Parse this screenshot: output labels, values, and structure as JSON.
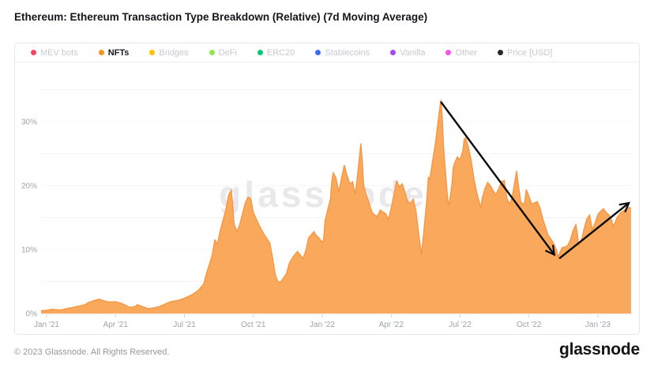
{
  "page": {
    "title": "Ethereum: Ethereum Transaction Type Breakdown (Relative) (7d Moving Average)",
    "watermark": "glassnode",
    "footer_copyright": "© 2023 Glassnode. All Rights Reserved.",
    "footer_logo": "glassnode"
  },
  "legend": {
    "position": "top",
    "items": [
      {
        "label": "MEV bots",
        "color": "#F9445F",
        "active": false
      },
      {
        "label": "NFTs",
        "color": "#F7931A",
        "active": true
      },
      {
        "label": "Bridges",
        "color": "#FDC300",
        "active": false
      },
      {
        "label": "DeFi",
        "color": "#8EE84C",
        "active": false
      },
      {
        "label": "ERC20",
        "color": "#00C875",
        "active": false
      },
      {
        "label": "Stablecoins",
        "color": "#3D6DF6",
        "active": false
      },
      {
        "label": "Vanilla",
        "color": "#A44AEC",
        "active": false
      },
      {
        "label": "Other",
        "color": "#F653E6",
        "active": false
      },
      {
        "label": "Price [USD]",
        "color": "#26262B",
        "active": false
      }
    ]
  },
  "chart_data": {
    "type": "area",
    "title": "Ethereum: Ethereum Transaction Type Breakdown (Relative) (7d Moving Average)",
    "xlabel": "",
    "ylabel": "",
    "unit": "%",
    "grid": "on",
    "legend_position": "top",
    "xlim": [
      2020.98,
      2023.13
    ],
    "ylim": [
      0,
      37
    ],
    "x_ticks": [
      {
        "t": 2021.0,
        "label": "Jan '21"
      },
      {
        "t": 2021.25,
        "label": "Apr '21"
      },
      {
        "t": 2021.5,
        "label": "Jul '21"
      },
      {
        "t": 2021.75,
        "label": "Oct '21"
      },
      {
        "t": 2022.0,
        "label": "Jan '22"
      },
      {
        "t": 2022.25,
        "label": "Apr '22"
      },
      {
        "t": 2022.5,
        "label": "Jul '22"
      },
      {
        "t": 2022.75,
        "label": "Oct '22"
      },
      {
        "t": 2023.0,
        "label": "Jan '23"
      }
    ],
    "y_ticks": [
      {
        "v": 0,
        "label": "0%"
      },
      {
        "v": 10,
        "label": "10%"
      },
      {
        "v": 20,
        "label": "20%"
      },
      {
        "v": 30,
        "label": "30%"
      }
    ],
    "gridline_values": [
      5,
      10,
      15,
      20,
      25,
      30,
      35
    ],
    "series": [
      {
        "name": "NFTs",
        "line_color": "#F7953F",
        "fill_color": "#F9A85C",
        "points": [
          [
            2020.98,
            0.45
          ],
          [
            2021.0,
            0.5
          ],
          [
            2021.02,
            0.65
          ],
          [
            2021.05,
            0.55
          ],
          [
            2021.07,
            0.75
          ],
          [
            2021.09,
            0.9
          ],
          [
            2021.11,
            1.1
          ],
          [
            2021.14,
            1.4
          ],
          [
            2021.15,
            1.7
          ],
          [
            2021.17,
            2.0
          ],
          [
            2021.19,
            2.25
          ],
          [
            2021.2,
            2.1
          ],
          [
            2021.22,
            1.85
          ],
          [
            2021.23,
            1.8
          ],
          [
            2021.25,
            1.85
          ],
          [
            2021.27,
            1.6
          ],
          [
            2021.29,
            1.25
          ],
          [
            2021.3,
            0.95
          ],
          [
            2021.32,
            1.1
          ],
          [
            2021.33,
            1.4
          ],
          [
            2021.34,
            1.2
          ],
          [
            2021.36,
            0.9
          ],
          [
            2021.37,
            0.75
          ],
          [
            2021.39,
            0.9
          ],
          [
            2021.41,
            1.1
          ],
          [
            2021.43,
            1.5
          ],
          [
            2021.45,
            1.85
          ],
          [
            2021.48,
            2.1
          ],
          [
            2021.5,
            2.4
          ],
          [
            2021.52,
            2.8
          ],
          [
            2021.53,
            3.0
          ],
          [
            2021.55,
            3.6
          ],
          [
            2021.57,
            4.6
          ],
          [
            2021.58,
            6.3
          ],
          [
            2021.6,
            9.0
          ],
          [
            2021.61,
            11.5
          ],
          [
            2021.62,
            10.9
          ],
          [
            2021.63,
            13.0
          ],
          [
            2021.65,
            16.2
          ],
          [
            2021.66,
            18.5
          ],
          [
            2021.67,
            19.3
          ],
          [
            2021.675,
            17.2
          ],
          [
            2021.68,
            14.0
          ],
          [
            2021.69,
            12.8
          ],
          [
            2021.7,
            13.8
          ],
          [
            2021.71,
            15.5
          ],
          [
            2021.72,
            17.2
          ],
          [
            2021.73,
            18.2
          ],
          [
            2021.74,
            18.0
          ],
          [
            2021.75,
            15.8
          ],
          [
            2021.77,
            13.9
          ],
          [
            2021.78,
            13.1
          ],
          [
            2021.79,
            12.3
          ],
          [
            2021.81,
            11.0
          ],
          [
            2021.82,
            8.6
          ],
          [
            2021.83,
            6.0
          ],
          [
            2021.84,
            4.9
          ],
          [
            2021.85,
            5.0
          ],
          [
            2021.87,
            6.2
          ],
          [
            2021.88,
            7.8
          ],
          [
            2021.89,
            8.6
          ],
          [
            2021.9,
            9.2
          ],
          [
            2021.91,
            9.7
          ],
          [
            2021.92,
            9.2
          ],
          [
            2021.93,
            8.6
          ],
          [
            2021.94,
            9.8
          ],
          [
            2021.95,
            11.8
          ],
          [
            2021.97,
            12.8
          ],
          [
            2021.975,
            12.4
          ],
          [
            2021.99,
            11.7
          ],
          [
            2022.0,
            11.1
          ],
          [
            2022.005,
            11.6
          ],
          [
            2022.01,
            14.5
          ],
          [
            2022.03,
            18.0
          ],
          [
            2022.035,
            20.8
          ],
          [
            2022.04,
            22.0
          ],
          [
            2022.05,
            21.2
          ],
          [
            2022.06,
            19.0
          ],
          [
            2022.07,
            21.2
          ],
          [
            2022.08,
            23.2
          ],
          [
            2022.09,
            21.6
          ],
          [
            2022.1,
            20.3
          ],
          [
            2022.11,
            20.6
          ],
          [
            2022.115,
            19.6
          ],
          [
            2022.12,
            18.7
          ],
          [
            2022.13,
            22.5
          ],
          [
            2022.14,
            26.6
          ],
          [
            2022.145,
            24.0
          ],
          [
            2022.15,
            20.0
          ],
          [
            2022.16,
            18.6
          ],
          [
            2022.17,
            17.3
          ],
          [
            2022.18,
            15.9
          ],
          [
            2022.19,
            15.4
          ],
          [
            2022.2,
            15.2
          ],
          [
            2022.21,
            16.2
          ],
          [
            2022.23,
            15.6
          ],
          [
            2022.24,
            14.7
          ],
          [
            2022.25,
            16.5
          ],
          [
            2022.26,
            18.6
          ],
          [
            2022.27,
            20.7
          ],
          [
            2022.28,
            19.8
          ],
          [
            2022.29,
            20.3
          ],
          [
            2022.3,
            19.0
          ],
          [
            2022.31,
            17.5
          ],
          [
            2022.32,
            17.2
          ],
          [
            2022.33,
            17.9
          ],
          [
            2022.34,
            16.0
          ],
          [
            2022.35,
            12.5
          ],
          [
            2022.36,
            9.2
          ],
          [
            2022.37,
            13.5
          ],
          [
            2022.38,
            18.1
          ],
          [
            2022.385,
            21.3
          ],
          [
            2022.39,
            21.0
          ],
          [
            2022.4,
            23.8
          ],
          [
            2022.41,
            26.5
          ],
          [
            2022.42,
            30.0
          ],
          [
            2022.43,
            33.4
          ],
          [
            2022.435,
            31.0
          ],
          [
            2022.44,
            26.0
          ],
          [
            2022.45,
            20.5
          ],
          [
            2022.455,
            17.9
          ],
          [
            2022.46,
            16.9
          ],
          [
            2022.47,
            20.0
          ],
          [
            2022.475,
            22.8
          ],
          [
            2022.48,
            23.5
          ],
          [
            2022.49,
            24.5
          ],
          [
            2022.5,
            24.0
          ],
          [
            2022.51,
            25.5
          ],
          [
            2022.515,
            27.2
          ],
          [
            2022.52,
            27.5
          ],
          [
            2022.53,
            26.0
          ],
          [
            2022.54,
            24.0
          ],
          [
            2022.55,
            21.2
          ],
          [
            2022.56,
            19.0
          ],
          [
            2022.57,
            17.4
          ],
          [
            2022.575,
            16.5
          ],
          [
            2022.58,
            18.0
          ],
          [
            2022.59,
            19.5
          ],
          [
            2022.6,
            20.5
          ],
          [
            2022.61,
            20.0
          ],
          [
            2022.62,
            19.2
          ],
          [
            2022.63,
            18.6
          ],
          [
            2022.64,
            19.5
          ],
          [
            2022.65,
            20.6
          ],
          [
            2022.66,
            20.8
          ],
          [
            2022.665,
            19.5
          ],
          [
            2022.67,
            18.0
          ],
          [
            2022.68,
            17.1
          ],
          [
            2022.69,
            18.5
          ],
          [
            2022.7,
            21.0
          ],
          [
            2022.705,
            22.3
          ],
          [
            2022.71,
            20.5
          ],
          [
            2022.72,
            17.5
          ],
          [
            2022.73,
            17.0
          ],
          [
            2022.735,
            17.6
          ],
          [
            2022.74,
            19.4
          ],
          [
            2022.75,
            18.3
          ],
          [
            2022.76,
            17.1
          ],
          [
            2022.77,
            17.3
          ],
          [
            2022.78,
            17.5
          ],
          [
            2022.79,
            16.5
          ],
          [
            2022.8,
            14.8
          ],
          [
            2022.81,
            13.5
          ],
          [
            2022.815,
            12.8
          ],
          [
            2022.82,
            12.2
          ],
          [
            2022.83,
            11.6
          ],
          [
            2022.84,
            10.9
          ],
          [
            2022.85,
            9.9
          ],
          [
            2022.855,
            8.8
          ],
          [
            2022.86,
            9.3
          ],
          [
            2022.87,
            10.3
          ],
          [
            2022.88,
            10.4
          ],
          [
            2022.89,
            10.6
          ],
          [
            2022.9,
            11.5
          ],
          [
            2022.91,
            13.0
          ],
          [
            2022.92,
            13.9
          ],
          [
            2022.925,
            12.6
          ],
          [
            2022.93,
            10.6
          ],
          [
            2022.94,
            11.5
          ],
          [
            2022.95,
            13.3
          ],
          [
            2022.96,
            14.8
          ],
          [
            2022.97,
            15.4
          ],
          [
            2022.975,
            14.2
          ],
          [
            2022.98,
            13.1
          ],
          [
            2022.99,
            14.2
          ],
          [
            2023.0,
            15.5
          ],
          [
            2023.01,
            16.0
          ],
          [
            2023.02,
            16.4
          ],
          [
            2023.03,
            15.8
          ],
          [
            2023.04,
            15.4
          ],
          [
            2023.05,
            14.6
          ],
          [
            2023.055,
            13.6
          ],
          [
            2023.06,
            14.0
          ],
          [
            2023.07,
            15.0
          ],
          [
            2023.08,
            15.6
          ],
          [
            2023.09,
            16.0
          ],
          [
            2023.1,
            16.3
          ],
          [
            2023.11,
            16.5
          ],
          [
            2023.115,
            16.6
          ],
          [
            2023.12,
            16.4
          ]
        ]
      }
    ],
    "annotations": {
      "arrow_color": "#0b0b0e",
      "arrows": [
        {
          "from": [
            2022.43,
            33.1
          ],
          "to": [
            2022.84,
            9.3
          ]
        },
        {
          "from": [
            2022.86,
            8.6
          ],
          "to": [
            2023.11,
            17.2
          ]
        }
      ]
    }
  }
}
